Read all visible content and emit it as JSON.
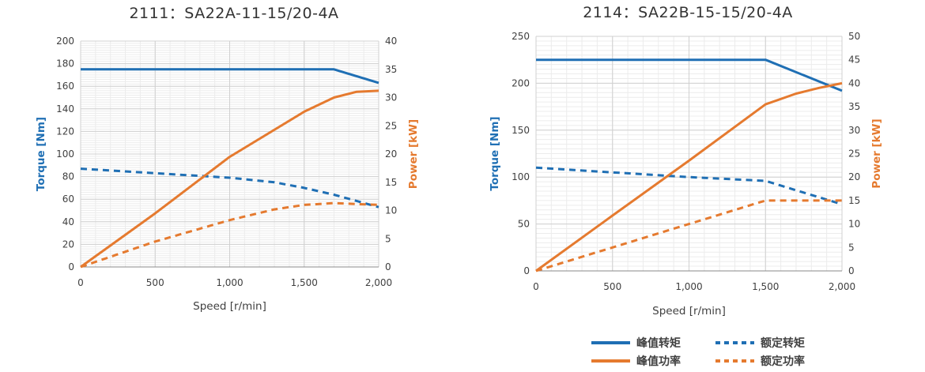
{
  "colors": {
    "torque": "#1f6fb4",
    "power": "#e57a2f",
    "grid_major": "#d0d0d0",
    "grid_minor": "#ececec",
    "axis": "#888888"
  },
  "legend": {
    "peak_torque": "峰值转矩",
    "rated_torque": "额定转矩",
    "peak_power": "峰值功率",
    "rated_power": "额定功率"
  },
  "chart_data": [
    {
      "type": "line",
      "title": "2111：SA22A-11-15/20-4A",
      "xlabel": "Speed [r/min]",
      "ylabel": "Torque [Nm]",
      "y2label": "Power [kW]",
      "xlim": [
        0,
        2000
      ],
      "ylim": [
        0,
        200
      ],
      "y2lim": [
        0,
        40
      ],
      "xticks": [
        0,
        500,
        1000,
        1500,
        2000
      ],
      "xtick_labels": [
        "0",
        "500",
        "1,000",
        "1,500",
        "2,000"
      ],
      "yticks": [
        0,
        20,
        40,
        60,
        80,
        100,
        120,
        140,
        160,
        180,
        200
      ],
      "y2ticks": [
        0,
        5,
        10,
        15,
        20,
        25,
        30,
        35,
        40
      ],
      "series": [
        {
          "name": "峰值转矩",
          "axis": "left",
          "style": "solid",
          "quantity": "torque",
          "x": [
            0,
            1700,
            2000
          ],
          "y": [
            175,
            175,
            163
          ]
        },
        {
          "name": "额定转矩",
          "axis": "left",
          "style": "dashed",
          "quantity": "torque",
          "x": [
            0,
            500,
            1000,
            1300,
            1500,
            1700,
            2000
          ],
          "y": [
            87,
            83,
            79,
            75,
            70,
            64,
            53
          ]
        },
        {
          "name": "峰值功率",
          "axis": "right",
          "style": "solid",
          "quantity": "power",
          "x": [
            0,
            500,
            1000,
            1500,
            1700,
            1850,
            2000
          ],
          "y": [
            0,
            9.5,
            19.5,
            27.5,
            30,
            31,
            31.2
          ]
        },
        {
          "name": "额定功率",
          "axis": "right",
          "style": "dashed",
          "quantity": "power",
          "x": [
            0,
            500,
            1000,
            1300,
            1500,
            1700,
            2000
          ],
          "y": [
            0,
            4.5,
            8.3,
            10.2,
            11,
            11.3,
            11
          ]
        }
      ]
    },
    {
      "type": "line",
      "title": "2114：SA22B-15-15/20-4A",
      "xlabel": "Speed [r/min]",
      "ylabel": "Torque [Nm]",
      "y2label": "Power [kW]",
      "xlim": [
        0,
        2000
      ],
      "ylim": [
        0,
        250
      ],
      "y2lim": [
        0,
        50
      ],
      "xticks": [
        0,
        500,
        1000,
        1500,
        2000
      ],
      "xtick_labels": [
        "0",
        "500",
        "1,000",
        "1,500",
        "2,000"
      ],
      "yticks": [
        0,
        50,
        100,
        150,
        200,
        250
      ],
      "y2ticks": [
        0,
        5,
        10,
        15,
        20,
        25,
        30,
        35,
        40,
        45,
        50
      ],
      "series": [
        {
          "name": "峰值转矩",
          "axis": "left",
          "style": "solid",
          "quantity": "torque",
          "x": [
            0,
            1500,
            2000
          ],
          "y": [
            225,
            225,
            192
          ]
        },
        {
          "name": "额定转矩",
          "axis": "left",
          "style": "dashed",
          "quantity": "torque",
          "x": [
            0,
            1000,
            1500,
            2000
          ],
          "y": [
            110,
            100,
            96,
            71
          ]
        },
        {
          "name": "峰值功率",
          "axis": "right",
          "style": "solid",
          "quantity": "power",
          "x": [
            0,
            500,
            1000,
            1500,
            1700,
            1850,
            2000
          ],
          "y": [
            0,
            11.8,
            23.5,
            35.5,
            37.8,
            39,
            40
          ]
        },
        {
          "name": "额定功率",
          "axis": "right",
          "style": "dashed",
          "quantity": "power",
          "x": [
            0,
            500,
            1000,
            1500,
            2000
          ],
          "y": [
            0,
            5,
            10,
            15,
            15
          ]
        }
      ]
    }
  ]
}
